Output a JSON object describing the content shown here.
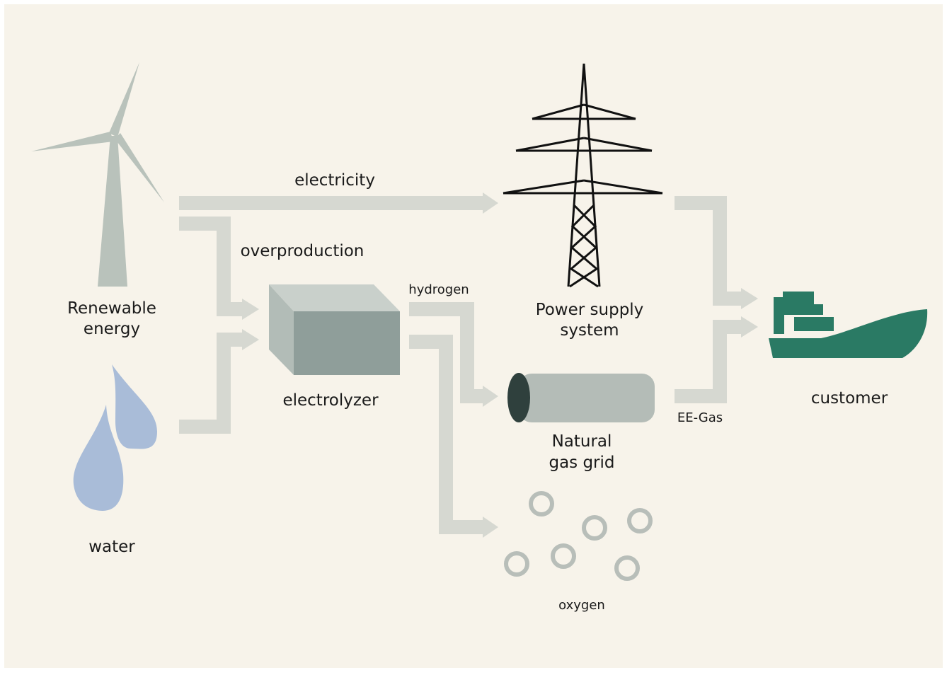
{
  "nodes": [
    {
      "lines": [
        "Renewable",
        "energy"
      ]
    },
    {
      "lines": [
        "water"
      ]
    },
    {
      "lines": [
        "electrolyzer"
      ]
    },
    {
      "lines": [
        "Power supply",
        "system"
      ]
    },
    {
      "lines": [
        "Natural",
        "gas grid"
      ]
    },
    {
      "lines": [
        "oxygen"
      ]
    },
    {
      "lines": [
        "customer"
      ]
    }
  ],
  "edges": [
    {
      "label": "electricity"
    },
    {
      "label": "overproduction"
    },
    {
      "label": "hydrogen"
    },
    {
      "label": "EE-Gas"
    }
  ]
}
